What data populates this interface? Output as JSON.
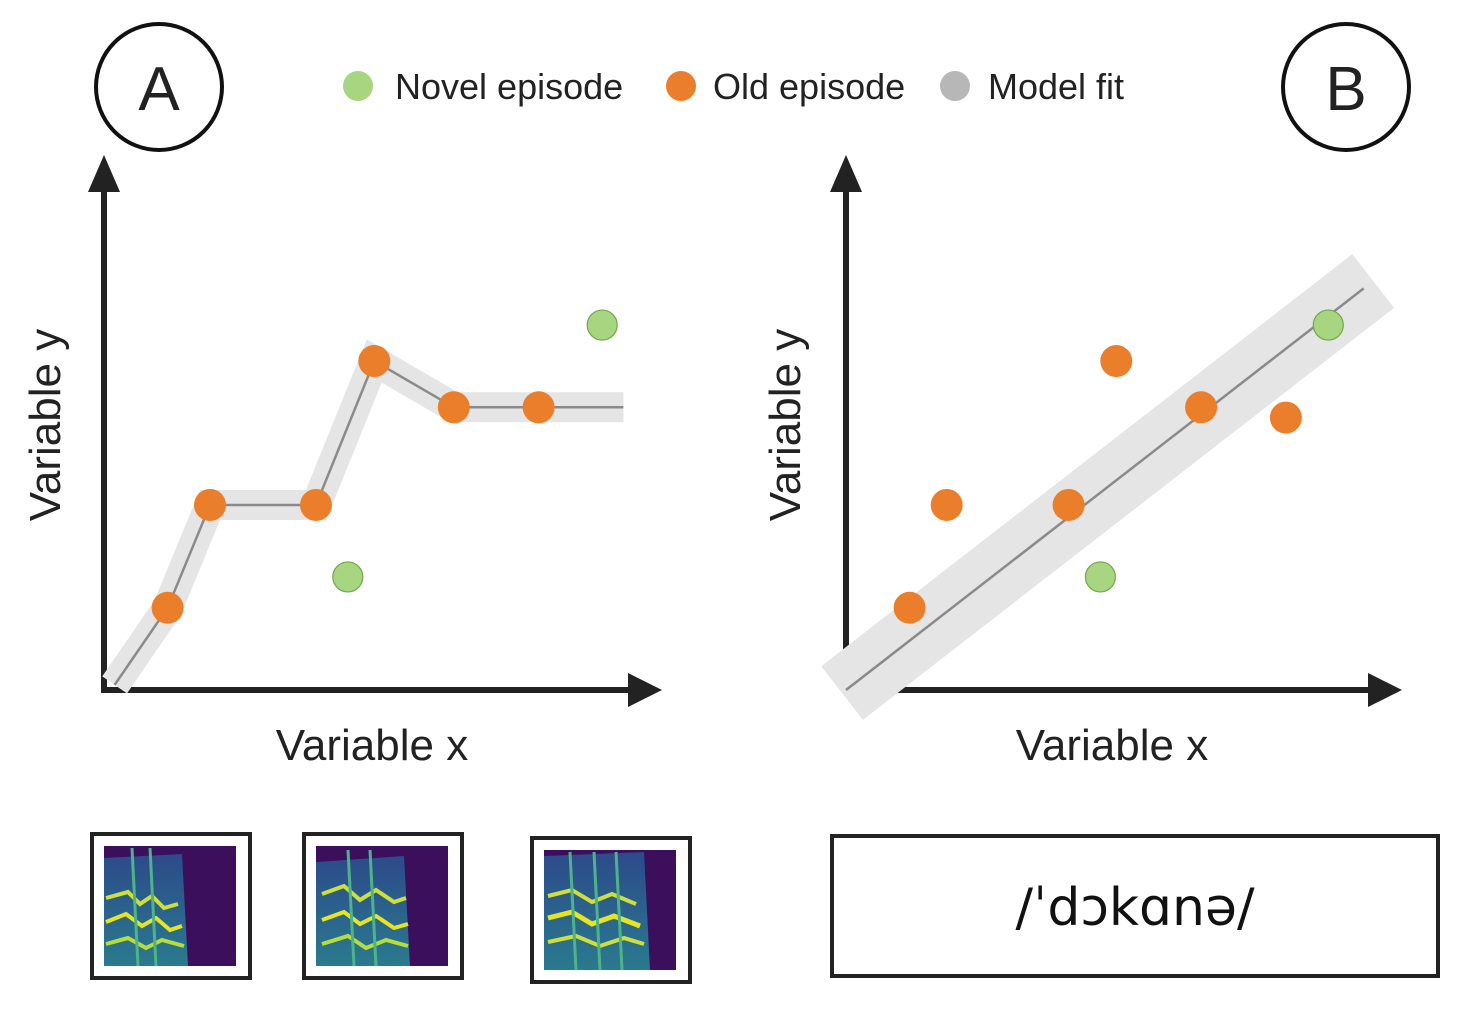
{
  "legend": {
    "items": [
      {
        "label": "Novel episode",
        "color": "#a8d57f"
      },
      {
        "label": "Old episode",
        "color": "#ea7e2a"
      },
      {
        "label": "Model fit",
        "color": "#b7b7b7"
      }
    ]
  },
  "colors": {
    "axis": "#222222",
    "fit_band": "#e4e5e4",
    "fit_line": "#8a8a8a",
    "novel_stroke": "#6fa84a",
    "old": "#ea7e2a"
  },
  "panel_a": {
    "letter": "A",
    "xlabel": "Variable x",
    "ylabel": "Variable y",
    "chart_data": {
      "type": "line",
      "xlim": [
        0,
        10
      ],
      "ylim": [
        0,
        10
      ],
      "model_fit": [
        [
          0.2,
          0.1
        ],
        [
          1.2,
          1.6
        ],
        [
          2.0,
          3.6
        ],
        [
          4.0,
          3.6
        ],
        [
          5.1,
          6.4
        ],
        [
          6.6,
          5.5
        ],
        [
          9.8,
          5.5
        ]
      ],
      "old_episodes": [
        [
          1.2,
          1.6
        ],
        [
          2.0,
          3.6
        ],
        [
          4.0,
          3.6
        ],
        [
          5.1,
          6.4
        ],
        [
          6.6,
          5.5
        ],
        [
          8.2,
          5.5
        ]
      ],
      "novel_episodes": [
        [
          4.6,
          2.2
        ],
        [
          9.4,
          7.1
        ]
      ]
    },
    "thumbnails": [
      {
        "icon": "spectrogram-1"
      },
      {
        "icon": "spectrogram-2"
      },
      {
        "icon": "spectrogram-3"
      }
    ]
  },
  "panel_b": {
    "letter": "B",
    "xlabel": "Variable x",
    "ylabel": "Variable y",
    "chart_data": {
      "type": "scatter",
      "xlim": [
        0,
        10
      ],
      "ylim": [
        0,
        10
      ],
      "model_fit": [
        [
          0.0,
          0.0
        ],
        [
          9.5,
          7.6
        ]
      ],
      "old_episodes": [
        [
          1.2,
          1.6
        ],
        [
          1.9,
          3.6
        ],
        [
          4.2,
          3.6
        ],
        [
          5.1,
          6.4
        ],
        [
          6.7,
          5.5
        ],
        [
          8.3,
          5.3
        ]
      ],
      "novel_episodes": [
        [
          4.8,
          2.2
        ],
        [
          9.1,
          7.1
        ]
      ]
    },
    "transcription": "/ˈdɔkɑnə/"
  }
}
